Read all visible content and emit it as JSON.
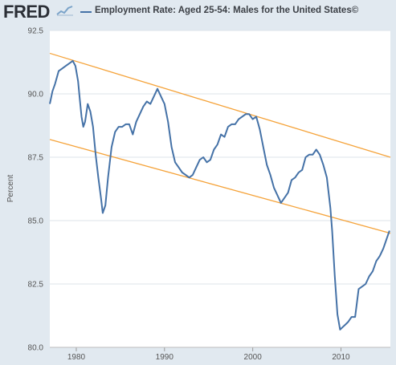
{
  "header": {
    "logo_text": "FRED",
    "title": "Employment Rate: Aged 25-54: Males for the United States©"
  },
  "colors": {
    "series": "#4572a7",
    "trendline": "#f5a33a",
    "background": "#e1e9f0",
    "plot_background": "#ffffff",
    "gridline": "#dde3ea"
  },
  "icons": {
    "logo_mark": "fred-graph-icon"
  },
  "chart_data": {
    "type": "line",
    "title": "Employment Rate: Aged 25-54: Males for the United States©",
    "xlabel": "",
    "ylabel": "Percent",
    "xlim": [
      1977.0,
      2015.6
    ],
    "ylim": [
      80.0,
      92.5
    ],
    "yticks": [
      80.0,
      82.5,
      85.0,
      87.5,
      90.0,
      92.5
    ],
    "ytick_labels": [
      "80.0",
      "82.5",
      "85.0",
      "87.5",
      "90.0",
      "92.5"
    ],
    "xticks": [
      1980,
      1990,
      2000,
      2010
    ],
    "xtick_labels": [
      "1980",
      "1990",
      "2000",
      "2010"
    ],
    "grid": true,
    "legend_position": "top",
    "series": [
      {
        "x": [
          1977.0,
          1977.3,
          1977.6,
          1978.0,
          1978.4,
          1978.8,
          1979.2,
          1979.6,
          1979.9,
          1980.2,
          1980.4,
          1980.6,
          1980.8,
          1981.0,
          1981.3,
          1981.6,
          1981.9,
          1982.2,
          1982.5,
          1982.8,
          1983.0,
          1983.3,
          1983.6,
          1984.0,
          1984.4,
          1984.8,
          1985.2,
          1985.6,
          1986.0,
          1986.4,
          1986.8,
          1987.2,
          1987.6,
          1988.0,
          1988.4,
          1988.8,
          1989.2,
          1989.6,
          1990.0,
          1990.4,
          1990.8,
          1991.2,
          1991.6,
          1992.0,
          1992.4,
          1992.8,
          1993.2,
          1993.6,
          1994.0,
          1994.4,
          1994.8,
          1995.2,
          1995.6,
          1996.0,
          1996.4,
          1996.8,
          1997.2,
          1997.6,
          1998.0,
          1998.4,
          1998.8,
          1999.2,
          1999.6,
          2000.0,
          2000.4,
          2000.8,
          2001.2,
          2001.6,
          2002.0,
          2002.4,
          2002.8,
          2003.2,
          2003.6,
          2004.0,
          2004.4,
          2004.8,
          2005.2,
          2005.6,
          2006.0,
          2006.4,
          2006.8,
          2007.2,
          2007.6,
          2008.0,
          2008.4,
          2008.8,
          2009.0,
          2009.3,
          2009.6,
          2009.9,
          2010.2,
          2010.5,
          2010.8,
          2011.2,
          2011.6,
          2012.0,
          2012.4,
          2012.8,
          2013.2,
          2013.6,
          2014.0,
          2014.4,
          2014.8,
          2015.2,
          2015.5
        ],
        "values": [
          89.6,
          90.1,
          90.4,
          90.9,
          91.0,
          91.1,
          91.2,
          91.3,
          91.1,
          90.5,
          89.8,
          89.1,
          88.7,
          88.9,
          89.6,
          89.3,
          88.7,
          87.6,
          86.7,
          85.9,
          85.3,
          85.6,
          86.7,
          87.9,
          88.5,
          88.7,
          88.7,
          88.8,
          88.8,
          88.4,
          88.9,
          89.2,
          89.5,
          89.7,
          89.6,
          89.9,
          90.2,
          89.9,
          89.6,
          88.9,
          87.9,
          87.3,
          87.1,
          86.9,
          86.8,
          86.7,
          86.8,
          87.1,
          87.4,
          87.5,
          87.3,
          87.4,
          87.8,
          88.0,
          88.4,
          88.3,
          88.7,
          88.8,
          88.8,
          89.0,
          89.1,
          89.2,
          89.2,
          89.0,
          89.1,
          88.6,
          87.9,
          87.2,
          86.8,
          86.3,
          86.0,
          85.7,
          85.9,
          86.1,
          86.6,
          86.7,
          86.9,
          87.0,
          87.5,
          87.6,
          87.6,
          87.8,
          87.6,
          87.2,
          86.7,
          85.5,
          84.6,
          82.8,
          81.3,
          80.7,
          80.8,
          80.9,
          81.0,
          81.2,
          81.2,
          82.3,
          82.4,
          82.5,
          82.8,
          83.0,
          83.4,
          83.6,
          83.9,
          84.3,
          84.6
        ]
      }
    ],
    "trendlines": [
      {
        "x": [
          1977.0,
          2015.6
        ],
        "y": [
          91.6,
          87.5
        ]
      },
      {
        "x": [
          1977.0,
          2015.6
        ],
        "y": [
          88.2,
          84.5
        ]
      }
    ]
  }
}
